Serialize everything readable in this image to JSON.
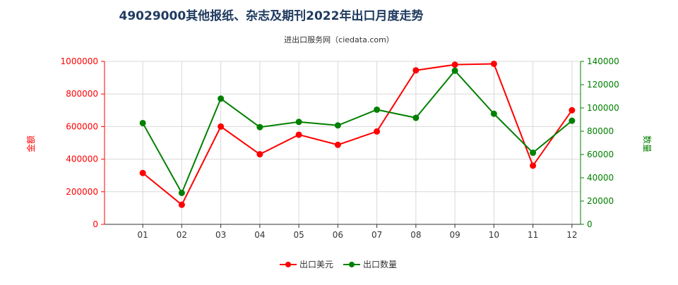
{
  "chart_data": {
    "type": "line",
    "title": "49029000其他报纸、杂志及期刊2022年出口月度走势",
    "subtitle": "进出口服务网（ciedata.com）",
    "categories": [
      "01",
      "02",
      "03",
      "04",
      "05",
      "06",
      "07",
      "08",
      "09",
      "10",
      "11",
      "12"
    ],
    "y_left": {
      "label": "金额",
      "ylim": [
        0,
        1000000
      ],
      "ticks": [
        "0",
        "200000",
        "400000",
        "600000",
        "800000",
        "1000000"
      ],
      "color": "#ff0000"
    },
    "y_right": {
      "label": "数量",
      "ylim": [
        0,
        140000
      ],
      "ticks": [
        "0",
        "20000",
        "40000",
        "60000",
        "80000",
        "100000",
        "120000",
        "140000"
      ],
      "color": "#008000"
    },
    "series": [
      {
        "name": "出口美元",
        "axis": "left",
        "color": "#ff0000",
        "values": [
          315000,
          120000,
          600000,
          430000,
          550000,
          488000,
          570000,
          945000,
          980000,
          985000,
          360000,
          700000
        ]
      },
      {
        "name": "出口数量",
        "axis": "right",
        "color": "#008000",
        "values": [
          87000,
          27000,
          108000,
          83500,
          88000,
          85000,
          98500,
          91500,
          132000,
          95000,
          61500,
          89000
        ]
      }
    ],
    "grid": true,
    "legend_position": "bottom-center"
  }
}
